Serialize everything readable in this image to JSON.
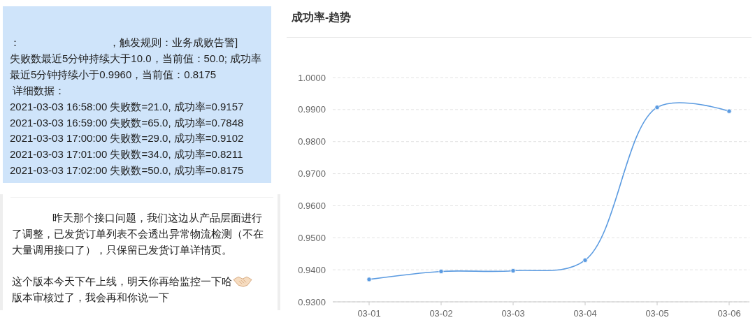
{
  "chart_data": [
    {
      "type": "other",
      "annotations": [
        "：",
        "，触发规则：业务成败告警]",
        "失败数最近5分钟持续大于10.0，当前值：50.0; 成功率",
        "最近5分钟持续小于0.9960，当前值：0.8175",
        "详细数据：",
        "2021-03-03 16:58:00 失败数=21.0, 成功率=0.9157",
        "2021-03-03 16:59:00 失败数=65.0, 成功率=0.7848",
        "2021-03-03 17:00:00 失败数=29.0, 成功率=0.9102",
        "2021-03-03 17:01:00 失败数=34.0, 成功率=0.8211",
        "2021-03-03 17:02:00 失败数=50.0, 成功率=0.8175"
      ]
    },
    {
      "type": "other",
      "annotations": [
        "昨天那个接口问题，我们这边从产品层面进行",
        "了调整，已发货订单列表不会透出异常物流检测（不在",
        "大量调用接口了），只保留已发货订单详情页。",
        "这个版本今天下午上线，明天你再给监控一下哈",
        "版本审核过了，我会再和你说一下"
      ]
    },
    {
      "type": "line",
      "title": "成功率-趋势",
      "categories": [
        "03-01",
        "03-02",
        "03-03",
        "03-04",
        "03-05",
        "03-06"
      ],
      "series": [
        {
          "color": "#5b9be1",
          "values": [
            0.937,
            0.9395,
            0.9397,
            0.943,
            0.9907,
            0.9895
          ]
        }
      ],
      "ylim": [
        0.93,
        1.0
      ],
      "yticks": [
        {
          "value": 0.93,
          "label": "0.9300"
        },
        {
          "value": 0.94,
          "label": "0.9400"
        },
        {
          "value": 0.95,
          "label": "0.9500"
        },
        {
          "value": 0.96,
          "label": "0.9600"
        },
        {
          "value": 0.97,
          "label": "0.9700"
        },
        {
          "value": 0.98,
          "label": "0.9800"
        },
        {
          "value": 0.99,
          "label": "0.9900"
        },
        {
          "value": 1.0,
          "label": "1.0000"
        }
      ],
      "grid": "y",
      "marker": "circle"
    }
  ]
}
